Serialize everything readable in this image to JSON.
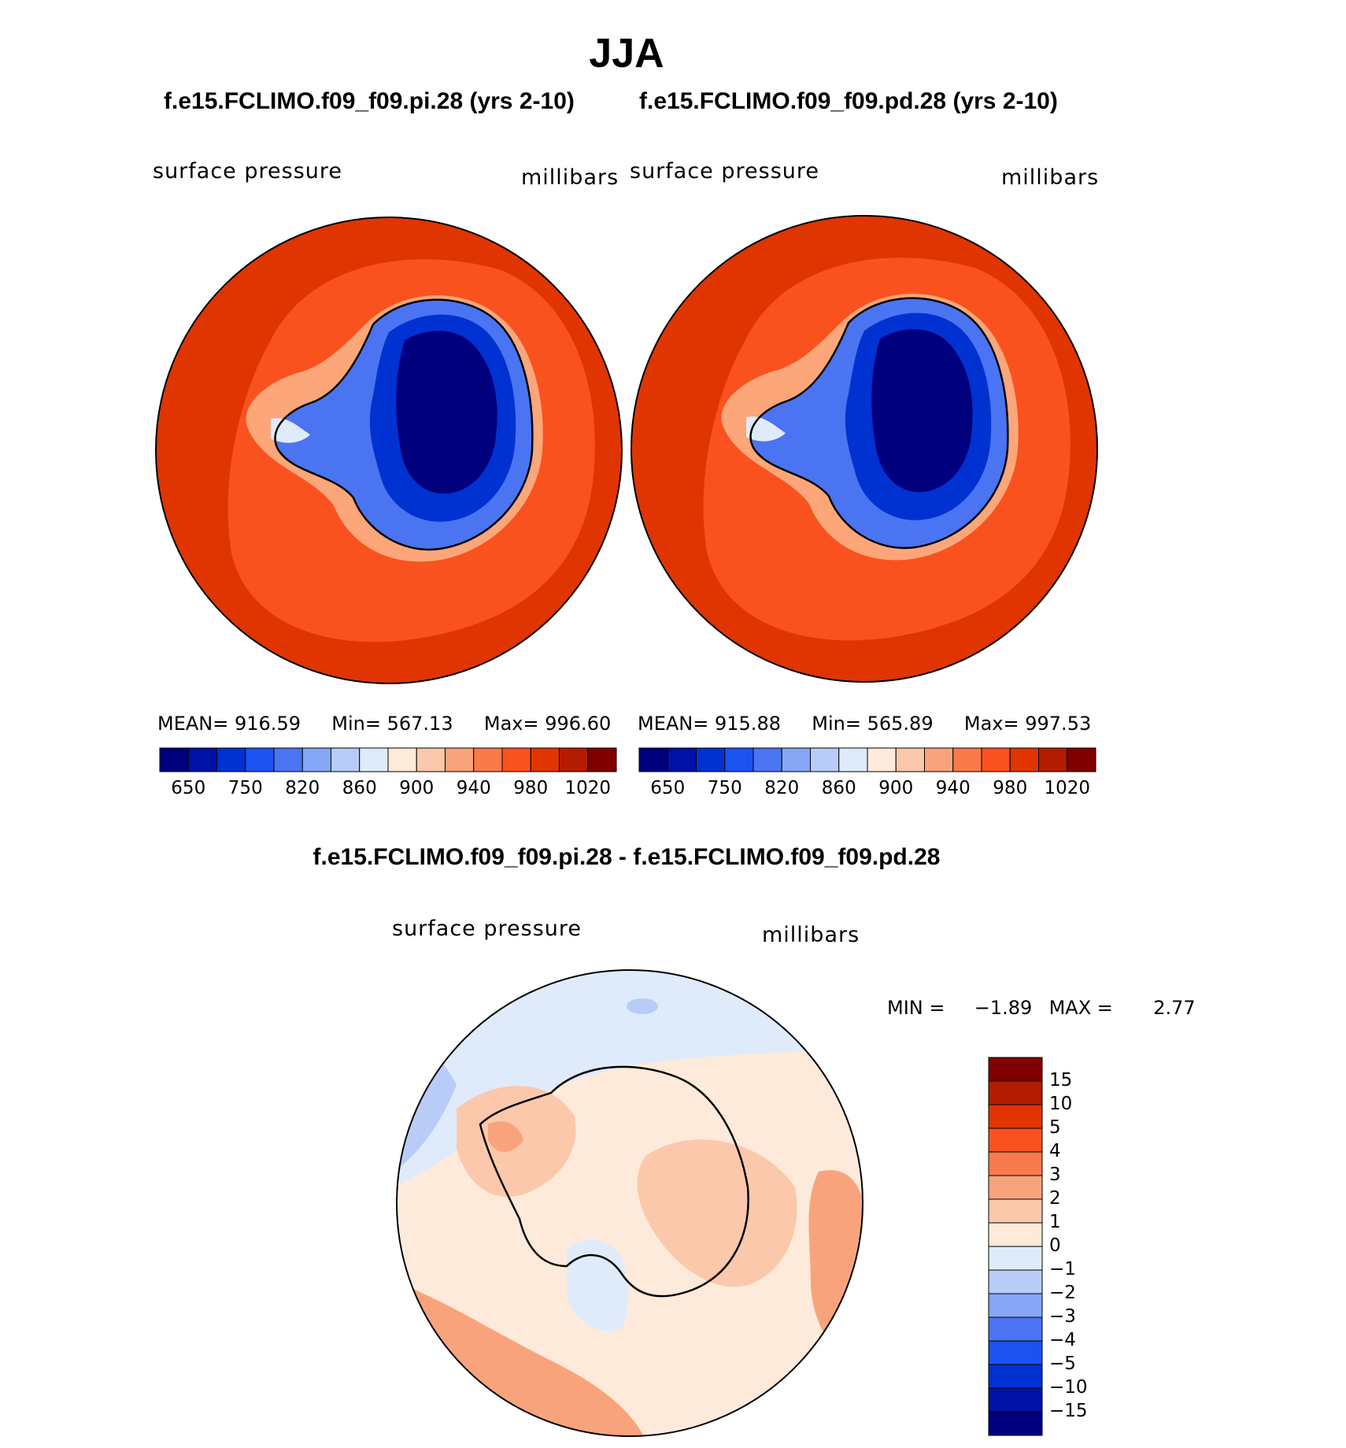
{
  "title": "JJA",
  "panels": [
    {
      "case": "f.e15.FCLIMO.f09_f09.pi.28 (yrs 2-10)",
      "field": "surface pressure",
      "units": "millibars",
      "mean_label": "MEAN=",
      "mean": "916.59",
      "min_label": "Min=",
      "min": "567.13",
      "max_label": "Max=",
      "max": "996.60"
    },
    {
      "case": "f.e15.FCLIMO.f09_f09.pd.28 (yrs 2-10)",
      "field": "surface pressure",
      "units": "millibars",
      "mean_label": "MEAN=",
      "mean": "915.88",
      "min_label": "Min=",
      "min": "565.89",
      "max_label": "Max=",
      "max": "997.53"
    }
  ],
  "colorbar_ticks": [
    "650",
    "750",
    "820",
    "860",
    "900",
    "940",
    "980",
    "1020"
  ],
  "colorbar_colors": [
    "#00007f",
    "#0011a6",
    "#0032d1",
    "#1c52f0",
    "#4b74f2",
    "#86a6f6",
    "#b9ccf8",
    "#dfebfa",
    "#fdeadb",
    "#fcc8ab",
    "#f9a37c",
    "#f97a4a",
    "#f9521f",
    "#e03500",
    "#b31c00",
    "#800000"
  ],
  "difference": {
    "title": "f.e15.FCLIMO.f09_f09.pi.28 - f.e15.FCLIMO.f09_f09.pd.28",
    "field": "surface pressure",
    "units": "millibars",
    "min_label": "MIN =",
    "min": "−1.89",
    "max_label": "MAX =",
    "max": "2.77",
    "colorbar_ticks": [
      "15",
      "10",
      "5",
      "4",
      "3",
      "2",
      "1",
      "0",
      "−1",
      "−2",
      "−3",
      "−4",
      "−5",
      "−10",
      "−15"
    ],
    "colorbar_colors": [
      "#800000",
      "#b31c00",
      "#e03500",
      "#f9521f",
      "#f97a4a",
      "#f9a37c",
      "#fcc8ab",
      "#fdeadb",
      "#dfebfa",
      "#b9ccf8",
      "#86a6f6",
      "#4b74f2",
      "#1c52f0",
      "#0032d1",
      "#0011a6",
      "#00007f"
    ]
  },
  "colors": {
    "ocean_outer": "#e03500",
    "ocean_inner": "#f9521f",
    "coast": "#fca67a",
    "ice_deep": "#00007f",
    "ice_mid": "#0032d1",
    "ice_light": "#4b74f2",
    "diff_light_blue": "#dfebfa",
    "diff_blue": "#b9ccf8",
    "diff_cream": "#fdeadb",
    "diff_salmon": "#fcc8ab",
    "diff_orange": "#f9a37c"
  }
}
